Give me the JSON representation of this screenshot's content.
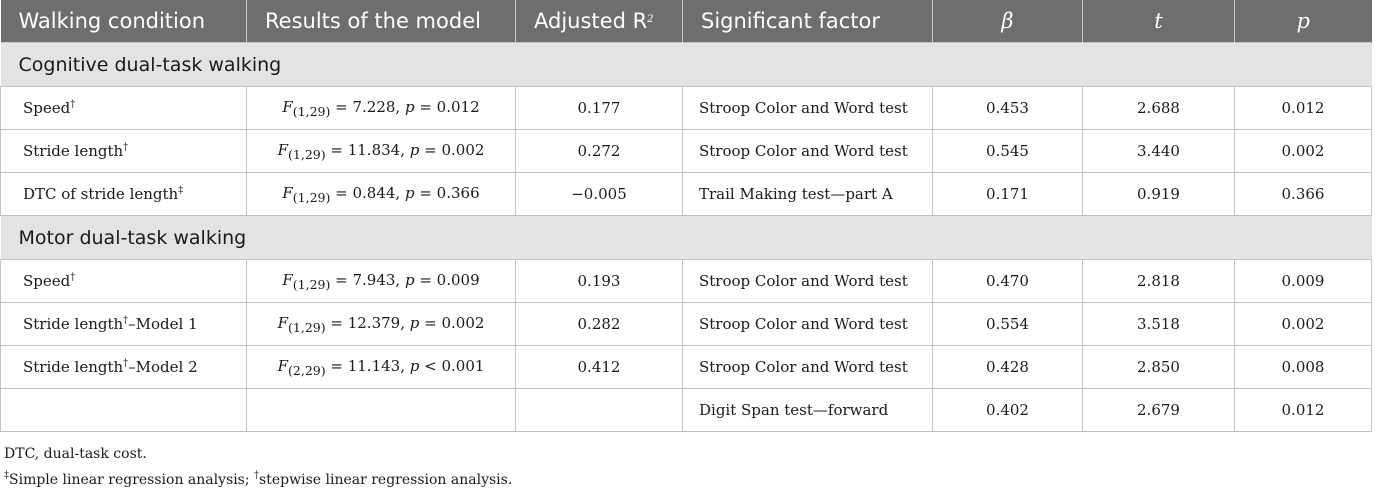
{
  "headers": {
    "walking_condition": "Walking condition",
    "results_of_model": "Results of the model",
    "adjusted_r2": "Adjusted R",
    "adjusted_r2_sup": "2",
    "significant_factor": "Significant factor",
    "beta": "β",
    "t": "t",
    "p": "p"
  },
  "groups": [
    {
      "title": "Cognitive dual-task walking",
      "rows": [
        {
          "condition": "Speed",
          "mark": "†",
          "suffix": "",
          "model_df": "(1,29)",
          "model_stat": " = 7.228, p = 0.012",
          "adj_r2": "0.177",
          "factor": "Stroop Color and Word test",
          "beta": "0.453",
          "t": "2.688",
          "p": "0.012"
        },
        {
          "condition": "Stride length",
          "mark": "†",
          "suffix": "",
          "model_df": "(1,29)",
          "model_stat": " = 11.834, p = 0.002",
          "adj_r2": "0.272",
          "factor": "Stroop Color and Word test",
          "beta": "0.545",
          "t": "3.440",
          "p": "0.002"
        },
        {
          "condition": "DTC of stride length",
          "mark": "‡",
          "suffix": "",
          "model_df": "(1,29)",
          "model_stat": " = 0.844, p = 0.366",
          "adj_r2": "−0.005",
          "factor": "Trail Making test—part A",
          "beta": "0.171",
          "t": "0.919",
          "p": "0.366"
        }
      ]
    },
    {
      "title": "Motor dual-task walking",
      "rows": [
        {
          "condition": "Speed",
          "mark": "†",
          "suffix": "",
          "model_df": "(1,29)",
          "model_stat": " = 7.943, p = 0.009",
          "adj_r2": "0.193",
          "factor": "Stroop Color and Word test",
          "beta": "0.470",
          "t": "2.818",
          "p": "0.009"
        },
        {
          "condition": "Stride length",
          "mark": "†",
          "suffix": "–Model 1",
          "model_df": "(1,29)",
          "model_stat": " = 12.379, p = 0.002",
          "adj_r2": "0.282",
          "factor": "Stroop Color and Word test",
          "beta": "0.554",
          "t": "3.518",
          "p": "0.002"
        },
        {
          "condition": "Stride length",
          "mark": "†",
          "suffix": "–Model 2",
          "model_df": "(2,29)",
          "model_stat": " = 11.143, p < 0.001",
          "adj_r2": "0.412",
          "factor": "Stroop Color and Word test",
          "beta": "0.428",
          "t": "2.850",
          "p": "0.008"
        },
        {
          "condition": "",
          "mark": "",
          "suffix": "",
          "model_df": "",
          "model_stat": "",
          "adj_r2": "",
          "factor": "Digit Span test—forward",
          "beta": "0.402",
          "t": "2.679",
          "p": "0.012"
        }
      ]
    }
  ],
  "footnotes": {
    "line1": "DTC, dual-task cost.",
    "line2_mark1": "‡",
    "line2_text1": "Simple linear regression analysis; ",
    "line2_mark2": "†",
    "line2_text2": "stepwise linear regression analysis."
  }
}
